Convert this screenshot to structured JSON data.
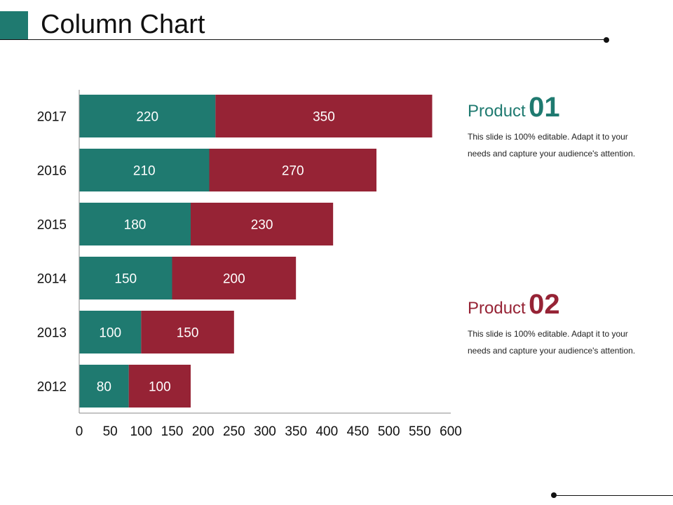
{
  "slide": {
    "title": "Column Chart"
  },
  "products": [
    {
      "word": "Product",
      "number": "01",
      "description": "This slide is 100% editable. Adapt it to your needs and capture your audience's attention."
    },
    {
      "word": "Product",
      "number": "02",
      "description": "This slide is 100% editable. Adapt it to your needs and capture your audience's attention."
    }
  ],
  "colors": {
    "series1": "#1f7a70",
    "series2": "#962335",
    "text": "#111111"
  },
  "chart_data": {
    "type": "bar",
    "orientation": "horizontal",
    "stacked": true,
    "title": "",
    "xlabel": "",
    "ylabel": "",
    "categories": [
      "2012",
      "2013",
      "2014",
      "2015",
      "2016",
      "2017"
    ],
    "series": [
      {
        "values": [
          80,
          100,
          150,
          180,
          210,
          220
        ]
      },
      {
        "values": [
          100,
          150,
          200,
          230,
          270,
          350
        ]
      }
    ],
    "xlim": [
      0,
      600
    ],
    "xticks": [
      0,
      50,
      100,
      150,
      200,
      250,
      300,
      350,
      400,
      450,
      500,
      550,
      600
    ],
    "data_labels": true,
    "grid": false,
    "legend": "none"
  }
}
